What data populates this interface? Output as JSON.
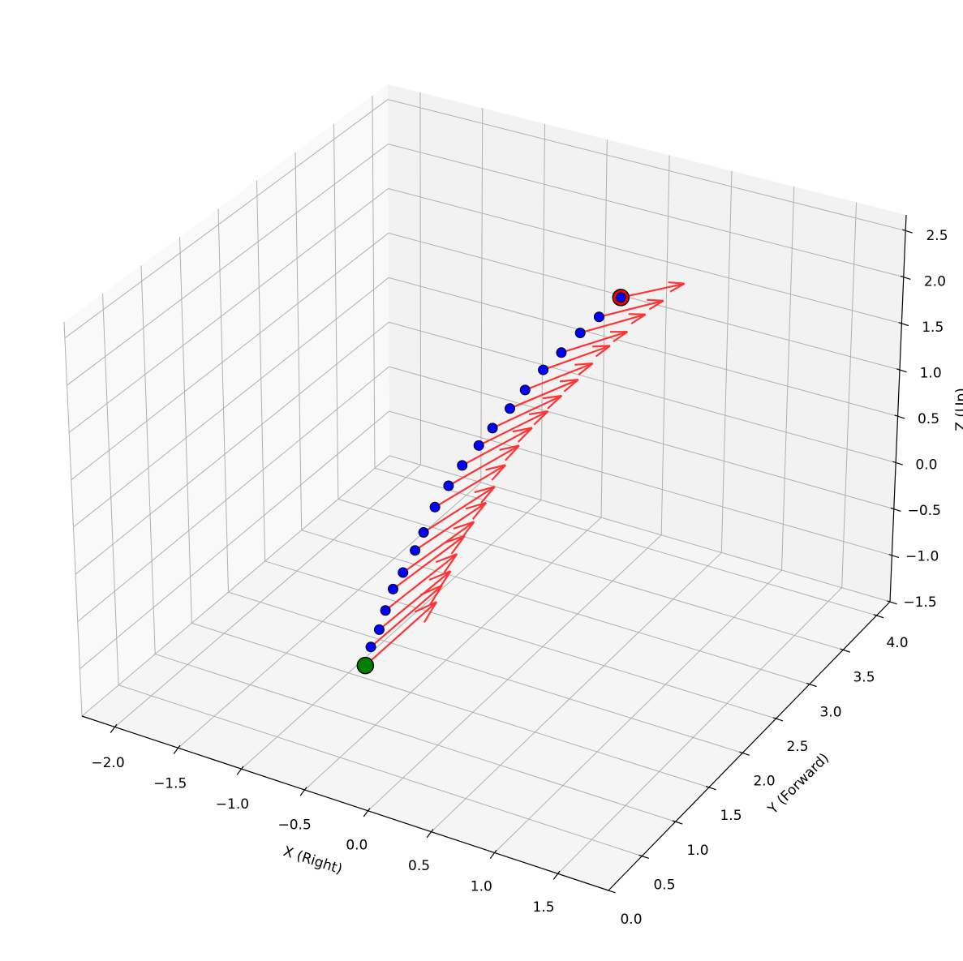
{
  "chart_data": {
    "type": "scatter",
    "projection": "3d",
    "title": "",
    "xlabel": "X (Right)",
    "ylabel": "Y (Forward)",
    "zlabel": "Z (Up)",
    "xlim": [
      -2.26,
      1.9
    ],
    "ylim": [
      0,
      4.2
    ],
    "zlim": [
      -1.5,
      2.67
    ],
    "xticks": [
      "−2.0",
      "−1.5",
      "−1.0",
      "−0.5",
      "0.0",
      "0.5",
      "1.0",
      "1.5"
    ],
    "xtick_values": [
      -2.0,
      -1.5,
      -1.0,
      -0.5,
      0.0,
      0.5,
      1.0,
      1.5
    ],
    "yticks": [
      "0.0",
      "0.5",
      "1.0",
      "1.5",
      "2.0",
      "2.5",
      "3.0",
      "3.5",
      "4.0"
    ],
    "ytick_values": [
      0,
      0.5,
      1,
      1.5,
      2,
      2.5,
      3,
      3.5,
      4
    ],
    "zticks": [
      "−1.5",
      "−1.0",
      "−0.5",
      "0.0",
      "0.5",
      "1.0",
      "1.5",
      "2.0",
      "2.5"
    ],
    "ztick_values": [
      -1.5,
      -1,
      -0.5,
      0,
      0.5,
      1,
      1.5,
      2,
      2.5
    ],
    "grid": true,
    "points": {
      "x": [
        0,
        0,
        0,
        0,
        0,
        0,
        0,
        0,
        0,
        0,
        0,
        0,
        0,
        0,
        0,
        0,
        0,
        0,
        0,
        0
      ],
      "y": [
        0.0,
        0.08,
        0.2,
        0.29,
        0.4,
        0.54,
        0.71,
        0.83,
        0.99,
        1.18,
        1.37,
        1.6,
        1.79,
        2.03,
        2.24,
        2.49,
        2.74,
        3.0,
        3.26,
        3.56
      ],
      "z": [
        0.0,
        0.14,
        0.24,
        0.38,
        0.53,
        0.61,
        0.73,
        0.84,
        1.0,
        1.1,
        1.19,
        1.25,
        1.31,
        1.36,
        1.42,
        1.47,
        1.49,
        1.53,
        1.53,
        1.54
      ],
      "color": "#0000ff"
    },
    "arrows": {
      "u": [
        0,
        0,
        0,
        0,
        0,
        0,
        0,
        0,
        0,
        0,
        0,
        0,
        0,
        0,
        0,
        0,
        0,
        0,
        0,
        0
      ],
      "v": [
        1.0,
        1.0,
        1.0,
        1.0,
        1.0,
        0.99,
        0.99,
        0.99,
        0.98,
        0.98,
        0.97,
        0.96,
        0.96,
        0.95,
        0.94,
        0.93,
        0.92,
        0.91,
        0.9,
        0.89
      ],
      "w": [
        0.0,
        -0.02,
        -0.05,
        -0.07,
        -0.1,
        -0.12,
        -0.15,
        -0.17,
        -0.2,
        -0.22,
        -0.24,
        -0.27,
        -0.29,
        -0.32,
        -0.34,
        -0.36,
        -0.39,
        -0.41,
        -0.43,
        -0.45
      ],
      "color": "#ff3333"
    },
    "start_marker": {
      "color": "#008000"
    },
    "end_marker": {
      "color": "#ff0000"
    },
    "pane_colors": {
      "x": "#f9f9f9",
      "y": "#f2f2f2",
      "z": "#f5f5f5"
    },
    "grid_color": "#b0b0b0"
  }
}
